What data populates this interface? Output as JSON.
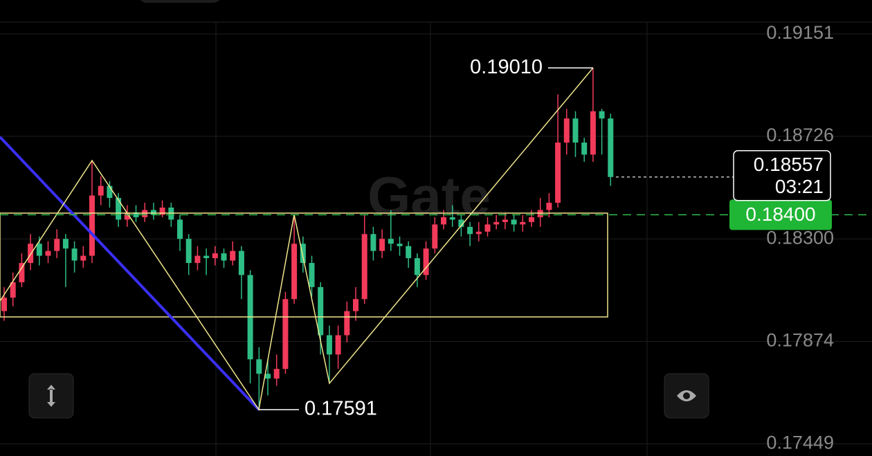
{
  "chart_data": {
    "type": "candlestick",
    "watermark": "Gate",
    "ylim": [
      0.1741,
      0.192
    ],
    "yticks": [
      0.19151,
      0.18726,
      {
        "value": 0.183,
        "label": "0.18300"
      },
      0.17874,
      0.17449
    ],
    "up_color": "#f23a5a",
    "down_color": "#2ebd85",
    "open": [
      0.18,
      0.18056,
      0.1812,
      0.182,
      0.1828,
      0.1823,
      0.1825,
      0.183,
      0.1826,
      0.1821,
      0.1823,
      0.1848,
      0.1852,
      0.1847,
      0.1838,
      0.1841,
      0.1839,
      0.1842,
      0.184,
      0.1843,
      0.1838,
      0.183,
      0.182,
      0.1823,
      0.1822,
      0.1824,
      0.1821,
      0.1825,
      0.1815,
      0.178,
      0.1774,
      0.1772,
      0.1776,
      0.1805,
      0.1828,
      0.182,
      0.181,
      0.179,
      0.1782,
      0.179,
      0.18,
      0.1805,
      0.1832,
      0.1825,
      0.183,
      0.1828,
      0.1827,
      0.1822,
      0.1815,
      0.1826,
      0.1836,
      0.1839,
      0.1838,
      0.1835,
      0.1832,
      0.1833,
      0.1836,
      0.1837,
      0.1838,
      0.1836,
      0.1837,
      0.1839,
      0.1842,
      0.1845,
      0.187,
      0.188,
      0.187,
      0.1865,
      0.1883,
      0.188
    ],
    "high": [
      0.181,
      0.1816,
      0.1824,
      0.1832,
      0.1831,
      0.1829,
      0.1834,
      0.1832,
      0.1829,
      0.1827,
      0.18625,
      0.1856,
      0.1854,
      0.1849,
      0.1844,
      0.1844,
      0.1845,
      0.1845,
      0.1846,
      0.1845,
      0.184,
      0.1832,
      0.1827,
      0.1826,
      0.1827,
      0.1826,
      0.1829,
      0.1827,
      0.1817,
      0.1785,
      0.178,
      0.1782,
      0.1808,
      0.184,
      0.1831,
      0.1823,
      0.1812,
      0.1794,
      0.1794,
      0.1804,
      0.181,
      0.184,
      0.1835,
      0.1834,
      0.1842,
      0.1831,
      0.1829,
      0.1824,
      0.1829,
      0.1839,
      0.1842,
      0.1844,
      0.184,
      0.1837,
      0.1837,
      0.1839,
      0.184,
      0.1841,
      0.184,
      0.184,
      0.1842,
      0.1847,
      0.1849,
      0.189,
      0.1884,
      0.1883,
      0.1872,
      0.1901,
      0.1884,
      0.1882
    ],
    "low": [
      0.1796,
      0.1802,
      0.181,
      0.1817,
      0.1819,
      0.182,
      0.1822,
      0.181,
      0.1816,
      0.1818,
      0.182,
      0.1844,
      0.1843,
      0.1835,
      0.1835,
      0.1837,
      0.1837,
      0.1838,
      0.1839,
      0.1835,
      0.1825,
      0.1815,
      0.1817,
      0.1815,
      0.1819,
      0.1818,
      0.1819,
      0.1805,
      0.177,
      0.17591,
      0.1765,
      0.1769,
      0.1774,
      0.1803,
      0.1816,
      0.1806,
      0.1782,
      0.177,
      0.1776,
      0.1787,
      0.1796,
      0.1803,
      0.1821,
      0.1822,
      0.1825,
      0.1823,
      0.1818,
      0.181,
      0.1813,
      0.1824,
      0.1834,
      0.1835,
      0.1831,
      0.1827,
      0.1829,
      0.1831,
      0.1834,
      0.1834,
      0.1833,
      0.1833,
      0.1835,
      0.1835,
      0.1839,
      0.1843,
      0.1865,
      0.1864,
      0.1862,
      0.1862,
      0.1865,
      0.1852
    ],
    "close": [
      0.18056,
      0.1812,
      0.182,
      0.1828,
      0.1823,
      0.1825,
      0.183,
      0.1826,
      0.1821,
      0.1823,
      0.1848,
      0.1852,
      0.1847,
      0.1838,
      0.1841,
      0.1839,
      0.1842,
      0.184,
      0.1843,
      0.1838,
      0.183,
      0.182,
      0.1823,
      0.1822,
      0.1824,
      0.1821,
      0.1825,
      0.1815,
      0.178,
      0.1774,
      0.1772,
      0.1776,
      0.1805,
      0.1828,
      0.182,
      0.181,
      0.179,
      0.1782,
      0.179,
      0.18,
      0.1805,
      0.1832,
      0.1825,
      0.183,
      0.1828,
      0.1827,
      0.1822,
      0.1815,
      0.1826,
      0.1836,
      0.1839,
      0.1838,
      0.1835,
      0.1832,
      0.1833,
      0.1836,
      0.1837,
      0.1838,
      0.1836,
      0.1837,
      0.1839,
      0.1842,
      0.1845,
      0.187,
      0.188,
      0.187,
      0.1865,
      0.1883,
      0.188,
      0.18557
    ],
    "annotations": [
      {
        "value": 0.1901,
        "label": "0.19010"
      },
      {
        "value": 0.17591,
        "label": "0.17591"
      }
    ],
    "last_price": 0.18557,
    "countdown": "03:21",
    "position_line": {
      "value": 0.184,
      "label": "0.18400"
    }
  }
}
